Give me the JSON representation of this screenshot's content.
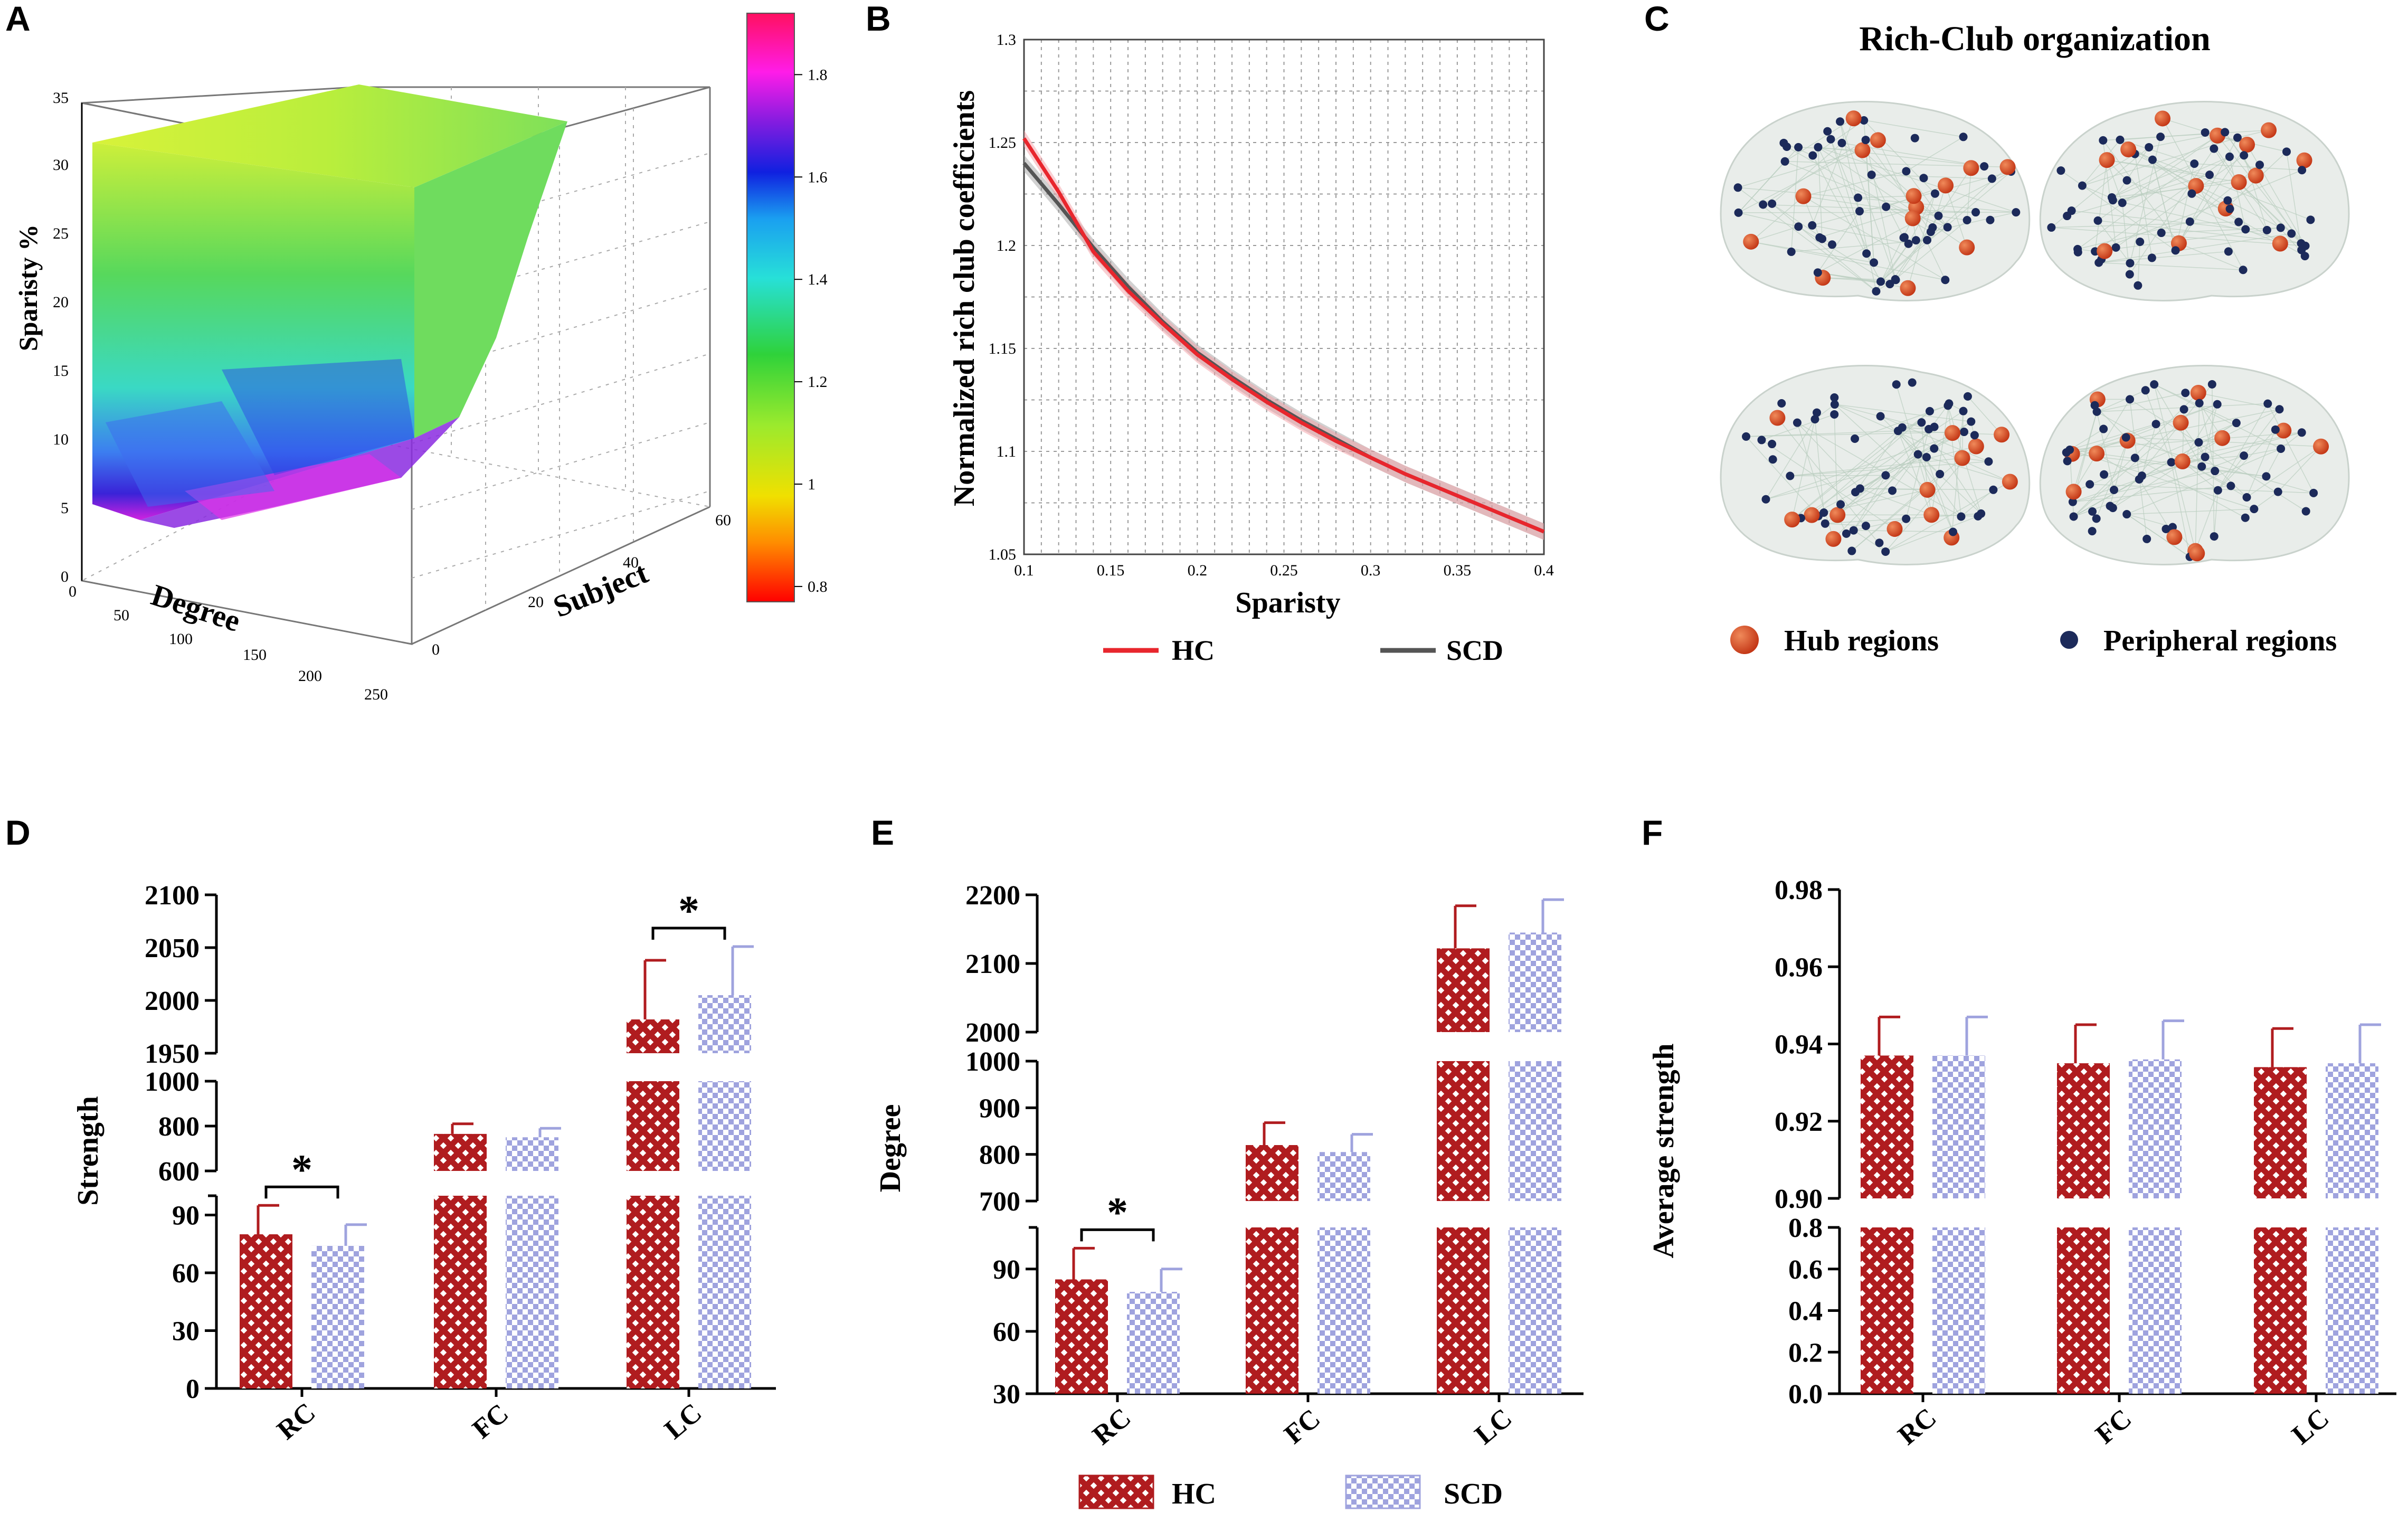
{
  "panels": {
    "A": {
      "letter": "A"
    },
    "B": {
      "letter": "B"
    },
    "C": {
      "letter": "C"
    },
    "D": {
      "letter": "D"
    },
    "E": {
      "letter": "E"
    },
    "F": {
      "letter": "F"
    }
  },
  "colors": {
    "hc": "#b01c1f",
    "scd": "#9fa3de",
    "hc_line": "#e8262d",
    "scd_line": "#555555",
    "hub": "#d2461d",
    "peripheral": "#1c2a5a"
  },
  "chart_data": [
    {
      "id": "A",
      "type": "heatmap",
      "xlabel": "Degree",
      "ylabel": "Subject",
      "zlabel": "Sparisty %",
      "x_ticks": [
        "0",
        "50",
        "100",
        "150",
        "200",
        "250"
      ],
      "y_ticks": [
        "0",
        "20",
        "40",
        "60"
      ],
      "z_ticks": [
        "0",
        "5",
        "10",
        "15",
        "20",
        "25",
        "30",
        "35"
      ],
      "colorbar_ticks": [
        "0.8",
        "1",
        "1.2",
        "1.4",
        "1.6",
        "1.8"
      ],
      "xlim": [
        0,
        250
      ],
      "ylim": [
        0,
        60
      ],
      "zlim": [
        0,
        35
      ],
      "colorbar_range": [
        0.77,
        1.92
      ]
    },
    {
      "id": "B",
      "type": "line",
      "xlabel": "Sparisty",
      "ylabel": "Normalized rich club coefficients",
      "x_ticks": [
        "0.1",
        "0.15",
        "0.2",
        "0.25",
        "0.3",
        "0.35",
        "0.4"
      ],
      "y_ticks": [
        "1.05",
        "1.1",
        "1.15",
        "1.2",
        "1.25",
        "1.3"
      ],
      "xlim": [
        0.1,
        0.4
      ],
      "ylim": [
        1.05,
        1.3
      ],
      "grid": true,
      "legend": [
        "HC",
        "SCD"
      ],
      "legend_placement": "bottom",
      "series": [
        {
          "name": "HC",
          "x": [
            0.1,
            0.12,
            0.14,
            0.16,
            0.18,
            0.2,
            0.22,
            0.24,
            0.26,
            0.28,
            0.3,
            0.32,
            0.34,
            0.36,
            0.38,
            0.4
          ],
          "values": [
            1.252,
            1.226,
            1.197,
            1.178,
            1.162,
            1.147,
            1.135,
            1.124,
            1.114,
            1.105,
            1.097,
            1.089,
            1.082,
            1.075,
            1.068,
            1.061
          ]
        },
        {
          "name": "SCD",
          "x": [
            0.1,
            0.12,
            0.14,
            0.16,
            0.18,
            0.2,
            0.22,
            0.24,
            0.26,
            0.28,
            0.3,
            0.32,
            0.34,
            0.36,
            0.38,
            0.4
          ],
          "values": [
            1.24,
            1.22,
            1.199,
            1.18,
            1.163,
            1.148,
            1.136,
            1.125,
            1.115,
            1.106,
            1.097,
            1.089,
            1.082,
            1.075,
            1.068,
            1.061
          ]
        }
      ]
    },
    {
      "id": "C",
      "type": "diagram",
      "title": "Rich-Club organization",
      "legend": [
        "Hub regions",
        "Peripheral regions"
      ]
    },
    {
      "id": "D",
      "type": "bar",
      "ylabel": "Strength",
      "categories": [
        "RC",
        "FC",
        "LC"
      ],
      "series": [
        {
          "name": "HC",
          "values": [
            80,
            765,
            1982
          ],
          "errors": [
            15,
            45,
            56
          ]
        },
        {
          "name": "SCD",
          "values": [
            74,
            750,
            2005
          ],
          "errors": [
            11,
            40,
            46
          ]
        }
      ],
      "broken_axis_segments": [
        {
          "range": [
            0,
            100
          ],
          "ticks": [
            "0",
            "30",
            "60",
            "90"
          ]
        },
        {
          "range": [
            600,
            1000
          ],
          "ticks": [
            "600",
            "800",
            "1000"
          ]
        },
        {
          "range": [
            1950,
            2100
          ],
          "ticks": [
            "1950",
            "2000",
            "2050",
            "2100"
          ]
        }
      ],
      "significance": [
        {
          "category": "RC",
          "label": "*"
        },
        {
          "category": "LC",
          "label": "*"
        }
      ]
    },
    {
      "id": "E",
      "type": "bar",
      "ylabel": "Degree",
      "categories": [
        "RC",
        "FC",
        "LC"
      ],
      "series": [
        {
          "name": "HC",
          "values": [
            85,
            820,
            2122
          ],
          "errors": [
            15,
            48,
            62
          ]
        },
        {
          "name": "SCD",
          "values": [
            79,
            805,
            2145
          ],
          "errors": [
            11,
            38,
            48
          ]
        }
      ],
      "broken_axis_segments": [
        {
          "range": [
            30,
            110
          ],
          "ticks": [
            "30",
            "60",
            "90"
          ]
        },
        {
          "range": [
            700,
            1000
          ],
          "ticks": [
            "700",
            "800",
            "900",
            "1000"
          ]
        },
        {
          "range": [
            2000,
            2200
          ],
          "ticks": [
            "2000",
            "2100",
            "2200"
          ]
        }
      ],
      "significance": [
        {
          "category": "RC",
          "label": "*"
        }
      ],
      "legend": [
        "HC",
        "SCD"
      ]
    },
    {
      "id": "F",
      "type": "bar",
      "ylabel": "Average strength",
      "categories": [
        "RC",
        "FC",
        "LC"
      ],
      "series": [
        {
          "name": "HC",
          "values": [
            0.937,
            0.935,
            0.934
          ],
          "errors": [
            0.01,
            0.01,
            0.01
          ]
        },
        {
          "name": "SCD",
          "values": [
            0.937,
            0.936,
            0.935
          ],
          "errors": [
            0.01,
            0.01,
            0.01
          ]
        }
      ],
      "broken_axis_segments": [
        {
          "range": [
            0.0,
            0.8
          ],
          "ticks": [
            "0.0",
            "0.2",
            "0.4",
            "0.6",
            "0.8"
          ]
        },
        {
          "range": [
            0.9,
            0.98
          ],
          "ticks": [
            "0.90",
            "0.92",
            "0.94",
            "0.96",
            "0.98"
          ]
        }
      ]
    }
  ]
}
